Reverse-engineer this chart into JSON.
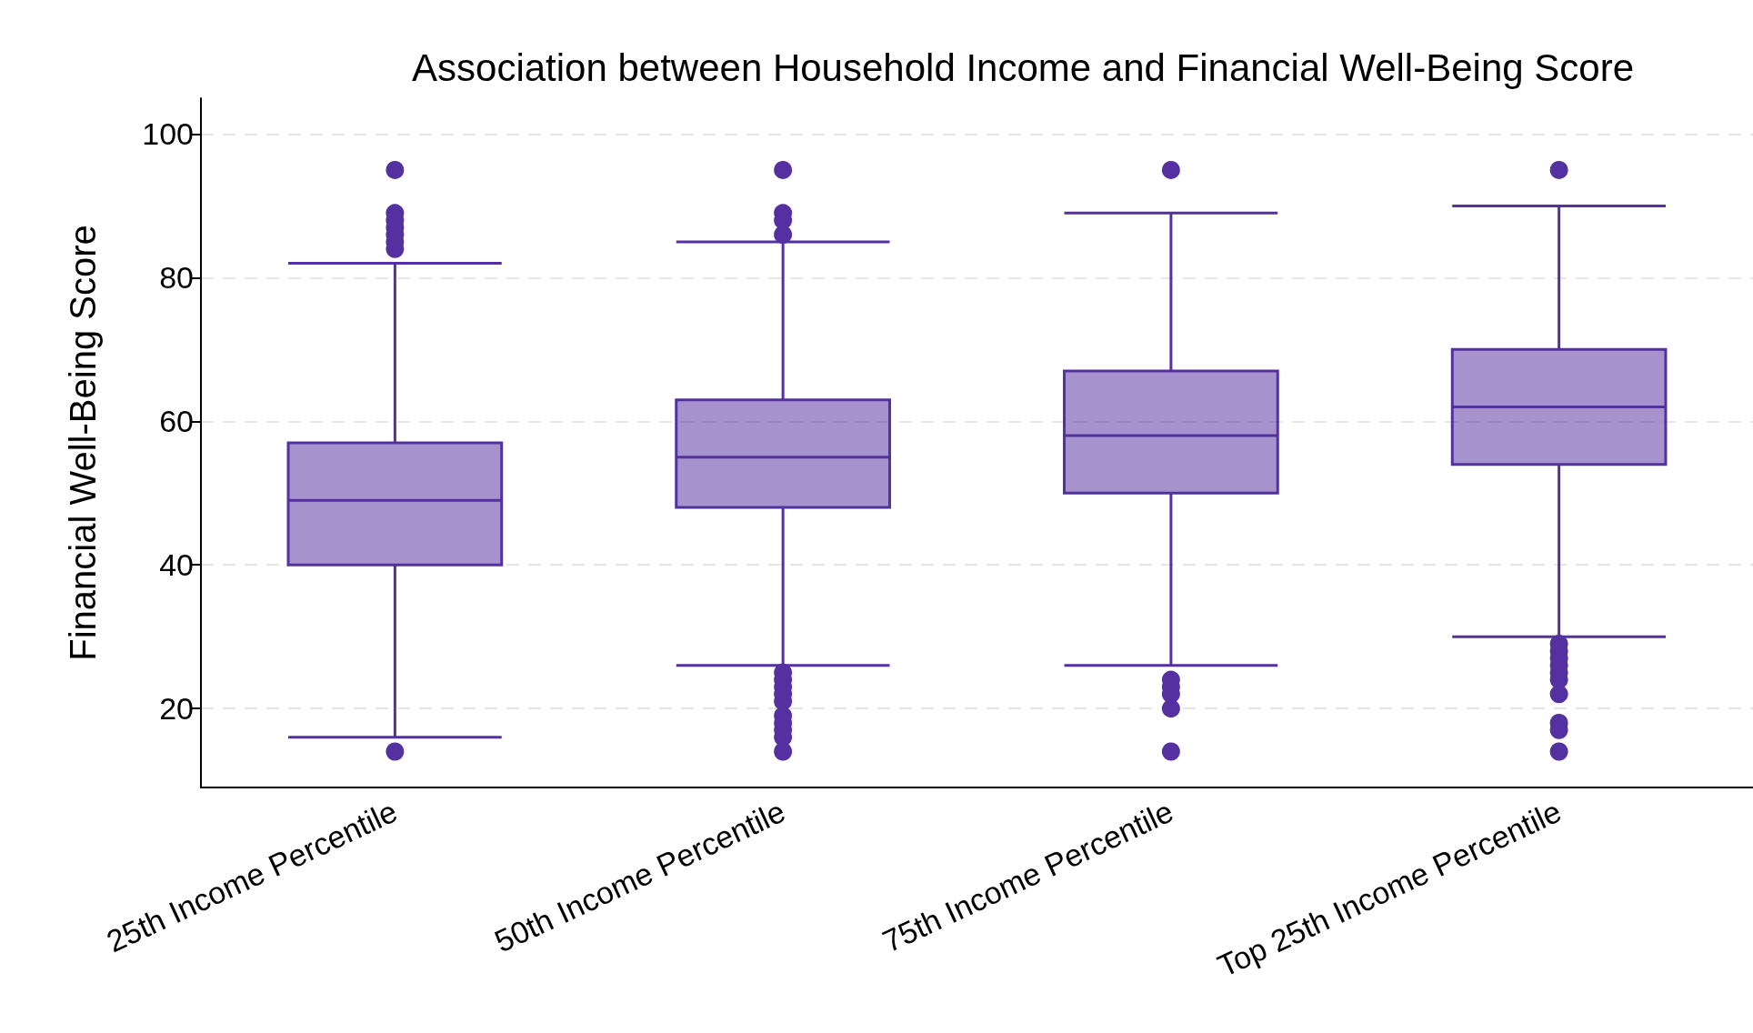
{
  "chart_data": {
    "type": "box",
    "title": "Association between Household Income and Financial Well-Being Score",
    "ylabel": "Financial Well-Being Score",
    "categories": [
      "25th Income Percentile",
      "50th Income Percentile",
      "75th Income Percentile",
      "Top 25th Income Percentile"
    ],
    "series": [
      {
        "color": "#5530a0",
        "boxes": [
          {
            "low": 16,
            "q1": 40,
            "median": 49,
            "q3": 57,
            "high": 82,
            "outliers": [
              95,
              89,
              88,
              87,
              86,
              85,
              84,
              14
            ]
          },
          {
            "low": 26,
            "q1": 48,
            "median": 55,
            "q3": 63,
            "high": 85,
            "outliers": [
              95,
              89,
              88,
              86,
              25,
              24,
              23,
              22,
              21,
              19,
              18,
              17,
              16,
              14
            ]
          },
          {
            "low": 26,
            "q1": 50,
            "median": 58,
            "q3": 67,
            "high": 89,
            "outliers": [
              95,
              24,
              23,
              22,
              20,
              14
            ]
          },
          {
            "low": 30,
            "q1": 54,
            "median": 62,
            "q3": 70,
            "high": 90,
            "outliers": [
              95,
              29,
              28,
              27,
              26,
              25,
              24,
              22,
              18,
              17,
              14
            ]
          }
        ]
      }
    ],
    "ylim": [
      9,
      105
    ],
    "yticks": [
      20,
      40,
      60,
      80,
      100
    ],
    "grid": "y"
  }
}
